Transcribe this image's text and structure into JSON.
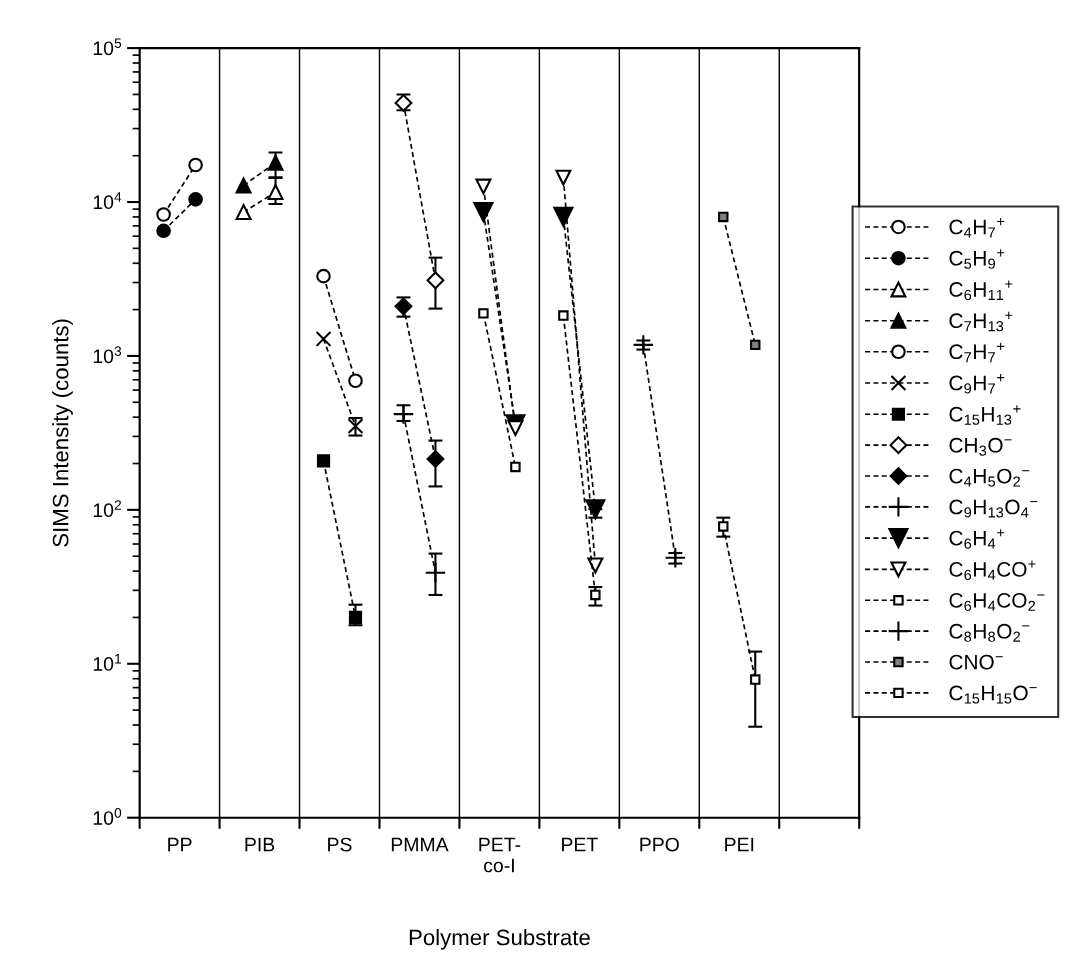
{
  "chart_data": {
    "type": "line",
    "xlabel": "Polymer Substrate",
    "ylabel": "SIMS Intensity (counts)",
    "log": "y",
    "grid": "x",
    "legend": "right",
    "line_style": "dashed",
    "categories": [
      null,
      null,
      "PP",
      null,
      null,
      null,
      null,
      "PIB",
      null,
      null,
      null,
      null,
      "PS",
      null,
      null,
      null,
      null,
      "PMMA",
      null,
      null,
      null,
      null,
      "PET-\nco-I",
      null,
      null,
      null,
      null,
      "PET",
      null,
      null,
      null,
      null,
      "PPO",
      null,
      null,
      null,
      null,
      "PEI",
      null,
      null,
      null,
      null,
      null,
      null,
      null
    ],
    "ylim": [
      1,
      100000
    ],
    "yticks": [
      {
        "value": 1,
        "label": "10$^{0}$"
      },
      {
        "value": 10,
        "label": "10$^{1}$"
      },
      {
        "value": 100,
        "label": "10$^{2}$"
      },
      {
        "value": 1000,
        "label": "10$^{3}$"
      },
      {
        "value": 10000,
        "label": "10$^{4}$"
      },
      {
        "value": 100000,
        "label": "10$^{5}$"
      }
    ],
    "series": [
      {
        "name": "C$_{4}$H$_{7}$$^{+}$",
        "color": "#000000",
        "marker": "circle-open",
        "values": [
          null,
          8300,
          null,
          17400,
          null,
          null,
          null,
          null,
          null,
          null,
          null,
          null,
          null,
          null,
          null,
          null,
          null,
          null,
          null,
          null,
          null,
          null,
          null,
          null,
          null,
          null,
          null,
          null,
          null,
          null,
          null,
          null,
          null,
          null,
          null,
          null,
          null,
          null,
          null,
          null,
          null,
          null,
          null,
          null,
          null
        ]
      },
      {
        "name": "C$_{5}$H$_{9}$$^{+}$",
        "color": "#000000",
        "marker": "circle",
        "values": [
          null,
          6500,
          null,
          10400,
          null,
          null,
          null,
          null,
          null,
          null,
          null,
          null,
          null,
          null,
          null,
          null,
          null,
          null,
          null,
          null,
          null,
          null,
          null,
          null,
          null,
          null,
          null,
          null,
          null,
          null,
          null,
          null,
          null,
          null,
          null,
          null,
          null,
          null,
          null,
          null,
          null,
          null,
          null,
          null,
          null
        ]
      },
      {
        "name": "C$_{6}$H$_{11}$$^{+}$",
        "color": "#000000",
        "marker": "triangle-open",
        "values": [
          null,
          null,
          null,
          null,
          null,
          null,
          8600,
          null,
          11600,
          null,
          null,
          null,
          null,
          null,
          null,
          null,
          null,
          null,
          null,
          null,
          null,
          null,
          null,
          null,
          null,
          null,
          null,
          null,
          null,
          null,
          null,
          null,
          null,
          null,
          null,
          null,
          null,
          null,
          null,
          null,
          null,
          null,
          null,
          null,
          null
        ],
        "errors": [
          null,
          null,
          null,
          null,
          null,
          null,
          null,
          null,
          [
            9700,
            14400
          ],
          null,
          null,
          null,
          null,
          null,
          null,
          null,
          null,
          null,
          null,
          null,
          null,
          null,
          null,
          null,
          null,
          null,
          null,
          null,
          null,
          null,
          null,
          null,
          null,
          null,
          null,
          null,
          null,
          null,
          null,
          null,
          null,
          null,
          null,
          null,
          null
        ]
      },
      {
        "name": "C$_{7}$H$_{13}$$^{+}$",
        "color": "#000000",
        "marker": "triangle",
        "values": [
          null,
          null,
          null,
          null,
          null,
          null,
          12800,
          null,
          18000,
          null,
          null,
          null,
          null,
          null,
          null,
          null,
          null,
          null,
          null,
          null,
          null,
          null,
          null,
          null,
          null,
          null,
          null,
          null,
          null,
          null,
          null,
          null,
          null,
          null,
          null,
          null,
          null,
          null,
          null,
          null,
          null,
          null,
          null,
          null,
          null
        ],
        "errors": [
          null,
          null,
          null,
          null,
          null,
          null,
          null,
          null,
          [
            14400,
            21000
          ],
          null,
          null,
          null,
          null,
          null,
          null,
          null,
          null,
          null,
          null,
          null,
          null,
          null,
          null,
          null,
          null,
          null,
          null,
          null,
          null,
          null,
          null,
          null,
          null,
          null,
          null,
          null,
          null,
          null,
          null,
          null,
          null,
          null,
          null,
          null,
          null
        ]
      },
      {
        "name": "C$_{7}$H$_{7}$$^{+}$",
        "color": "#000000",
        "marker": "circle-open",
        "values": [
          null,
          null,
          null,
          null,
          null,
          null,
          null,
          null,
          null,
          null,
          null,
          3300,
          null,
          690,
          null,
          null,
          null,
          null,
          null,
          null,
          null,
          null,
          null,
          null,
          null,
          null,
          null,
          null,
          null,
          null,
          null,
          null,
          null,
          null,
          null,
          null,
          null,
          null,
          null,
          null,
          null,
          null,
          null,
          null,
          null
        ]
      },
      {
        "name": "C$_{9}$H$_{7}$$^{+}$",
        "color": "#000000",
        "marker": "x",
        "values": [
          null,
          null,
          null,
          null,
          null,
          null,
          null,
          null,
          null,
          null,
          null,
          1290,
          null,
          350,
          null,
          null,
          null,
          null,
          null,
          null,
          null,
          null,
          null,
          null,
          null,
          null,
          null,
          null,
          null,
          null,
          null,
          null,
          null,
          null,
          null,
          null,
          null,
          null,
          null,
          null,
          null,
          null,
          null,
          null,
          null
        ],
        "errors": [
          null,
          null,
          null,
          null,
          null,
          null,
          null,
          null,
          null,
          null,
          null,
          null,
          null,
          [
            304,
            395
          ],
          null,
          null,
          null,
          null,
          null,
          null,
          null,
          null,
          null,
          null,
          null,
          null,
          null,
          null,
          null,
          null,
          null,
          null,
          null,
          null,
          null,
          null,
          null,
          null,
          null,
          null,
          null,
          null,
          null,
          null,
          null
        ]
      },
      {
        "name": "C$_{15}$H$_{13}$$^{+}$",
        "color": "#000000",
        "marker": "square",
        "values": [
          null,
          null,
          null,
          null,
          null,
          null,
          null,
          null,
          null,
          null,
          null,
          208,
          null,
          20,
          null,
          null,
          null,
          null,
          null,
          null,
          null,
          null,
          null,
          null,
          null,
          null,
          null,
          null,
          null,
          null,
          null,
          null,
          null,
          null,
          null,
          null,
          null,
          null,
          null,
          null,
          null,
          null,
          null,
          null,
          null
        ],
        "errors": [
          null,
          null,
          null,
          null,
          null,
          null,
          null,
          null,
          null,
          null,
          null,
          null,
          null,
          [
            17.8,
            24.2
          ],
          null,
          null,
          null,
          null,
          null,
          null,
          null,
          null,
          null,
          null,
          null,
          null,
          null,
          null,
          null,
          null,
          null,
          null,
          null,
          null,
          null,
          null,
          null,
          null,
          null,
          null,
          null,
          null,
          null,
          null,
          null
        ]
      },
      {
        "name": "CH$_{3}$O$^{−}$",
        "color": "#000000",
        "marker": "diamond-open",
        "values": [
          null,
          null,
          null,
          null,
          null,
          null,
          null,
          null,
          null,
          null,
          null,
          null,
          null,
          null,
          null,
          null,
          44000,
          null,
          3100,
          null,
          null,
          null,
          null,
          null,
          null,
          null,
          null,
          null,
          null,
          null,
          null,
          null,
          null,
          null,
          null,
          null,
          null,
          null,
          null,
          null,
          null,
          null,
          null,
          null,
          null
        ],
        "errors": [
          null,
          null,
          null,
          null,
          null,
          null,
          null,
          null,
          null,
          null,
          null,
          null,
          null,
          null,
          null,
          null,
          [
            39500,
            50000
          ],
          null,
          [
            2030,
            4350
          ],
          null,
          null,
          null,
          null,
          null,
          null,
          null,
          null,
          null,
          null,
          null,
          null,
          null,
          null,
          null,
          null,
          null,
          null,
          null,
          null,
          null,
          null,
          null,
          null,
          null,
          null
        ]
      },
      {
        "name": "C$_{4}$H$_{5}$O$_{2}$$^{−}$",
        "color": "#000000",
        "marker": "diamond",
        "values": [
          null,
          null,
          null,
          null,
          null,
          null,
          null,
          null,
          null,
          null,
          null,
          null,
          null,
          null,
          null,
          null,
          2100,
          null,
          214,
          null,
          null,
          null,
          null,
          null,
          null,
          null,
          null,
          null,
          null,
          null,
          null,
          null,
          null,
          null,
          null,
          null,
          null,
          null,
          null,
          null,
          null,
          null,
          null,
          null,
          null
        ],
        "errors": [
          null,
          null,
          null,
          null,
          null,
          null,
          null,
          null,
          null,
          null,
          null,
          null,
          null,
          null,
          null,
          null,
          [
            1800,
            2400
          ],
          null,
          [
            142,
            282
          ],
          null,
          null,
          null,
          null,
          null,
          null,
          null,
          null,
          null,
          null,
          null,
          null,
          null,
          null,
          null,
          null,
          null,
          null,
          null,
          null,
          null,
          null,
          null,
          null,
          null,
          null
        ]
      },
      {
        "name": "C$_{9}$H$_{13}$O$_{4}$$^{−}$",
        "color": "#000000",
        "marker": "plus",
        "values": [
          null,
          null,
          null,
          null,
          null,
          null,
          null,
          null,
          null,
          null,
          null,
          null,
          null,
          null,
          null,
          null,
          419,
          null,
          39,
          null,
          null,
          null,
          null,
          null,
          null,
          null,
          null,
          null,
          null,
          null,
          null,
          null,
          null,
          null,
          null,
          null,
          null,
          null,
          null,
          null,
          null,
          null,
          null,
          null,
          null
        ],
        "errors": [
          null,
          null,
          null,
          null,
          null,
          null,
          null,
          null,
          null,
          null,
          null,
          null,
          null,
          null,
          null,
          null,
          [
            378,
            478
          ],
          null,
          [
            28,
            52
          ],
          null,
          null,
          null,
          null,
          null,
          null,
          null,
          null,
          null,
          null,
          null,
          null,
          null,
          null,
          null,
          null,
          null,
          null,
          null,
          null,
          null,
          null,
          null,
          null,
          null,
          null
        ]
      },
      {
        "name": "C$_{6}$H$_{4}$$^{+}$",
        "color": "#000000",
        "marker": "triangle-down",
        "values": [
          null,
          null,
          null,
          null,
          null,
          null,
          null,
          null,
          null,
          null,
          null,
          null,
          null,
          null,
          null,
          null,
          null,
          null,
          null,
          null,
          null,
          8600,
          null,
          360,
          null,
          null,
          null,
          null,
          null,
          null,
          null,
          null,
          null,
          null,
          null,
          null,
          null,
          null,
          null,
          null,
          null,
          null,
          null,
          null,
          null
        ]
      },
      {
        "color": "#000000",
        "marker": "triangle-down",
        "values": [
          null,
          null,
          null,
          null,
          null,
          null,
          null,
          null,
          null,
          null,
          null,
          null,
          null,
          null,
          null,
          null,
          null,
          null,
          null,
          null,
          null,
          null,
          null,
          null,
          null,
          null,
          8000,
          null,
          101,
          null,
          null,
          null,
          null,
          null,
          null,
          null,
          null,
          null,
          null,
          null,
          null,
          null,
          null,
          null,
          null
        ],
        "errors": [
          null,
          null,
          null,
          null,
          null,
          null,
          null,
          null,
          null,
          null,
          null,
          null,
          null,
          null,
          null,
          null,
          null,
          null,
          null,
          null,
          null,
          null,
          null,
          null,
          null,
          null,
          null,
          null,
          [
            89,
            101
          ],
          null,
          null,
          null,
          null,
          null,
          null,
          null,
          null,
          null,
          null,
          null,
          null,
          null,
          null,
          null,
          null
        ]
      },
      {
        "name": "C$_{6}$H$_{4}$CO$^{+}$",
        "color": "#000000",
        "marker": "triangle-down-open",
        "values": [
          null,
          null,
          null,
          null,
          null,
          null,
          null,
          null,
          null,
          null,
          null,
          null,
          null,
          null,
          null,
          null,
          null,
          null,
          null,
          null,
          null,
          12600,
          null,
          340,
          null,
          null,
          null,
          null,
          null,
          null,
          null,
          null,
          null,
          null,
          null,
          null,
          null,
          null,
          null,
          null,
          null,
          null,
          null,
          null,
          null
        ]
      },
      {
        "color": "#000000",
        "marker": "triangle-down-open",
        "values": [
          null,
          null,
          null,
          null,
          null,
          null,
          null,
          null,
          null,
          null,
          null,
          null,
          null,
          null,
          null,
          null,
          null,
          null,
          null,
          null,
          null,
          null,
          null,
          null,
          null,
          null,
          14400,
          null,
          43.5,
          null,
          null,
          null,
          null,
          null,
          null,
          null,
          null,
          null,
          null,
          null,
          null,
          null,
          null,
          null,
          null
        ]
      },
      {
        "name": "C$_{6}$H$_{4}$CO$_{2}$$^{−}$",
        "color": "#000000",
        "marker": "square-open",
        "values": [
          null,
          null,
          null,
          null,
          null,
          null,
          null,
          null,
          null,
          null,
          null,
          null,
          null,
          null,
          null,
          null,
          null,
          null,
          null,
          null,
          null,
          1890,
          null,
          190,
          null,
          null,
          null,
          null,
          null,
          null,
          null,
          null,
          null,
          null,
          null,
          null,
          null,
          null,
          null,
          null,
          null,
          null,
          null,
          null,
          null
        ]
      },
      {
        "color": "#000000",
        "marker": "square-open",
        "values": [
          null,
          null,
          null,
          null,
          null,
          null,
          null,
          null,
          null,
          null,
          null,
          null,
          null,
          null,
          null,
          null,
          null,
          null,
          null,
          null,
          null,
          null,
          null,
          null,
          null,
          null,
          1830,
          null,
          28,
          null,
          null,
          null,
          null,
          null,
          null,
          null,
          null,
          null,
          null,
          null,
          null,
          null,
          null,
          null,
          null
        ],
        "errors": [
          null,
          null,
          null,
          null,
          null,
          null,
          null,
          null,
          null,
          null,
          null,
          null,
          null,
          null,
          null,
          null,
          null,
          null,
          null,
          null,
          null,
          null,
          null,
          null,
          null,
          null,
          null,
          null,
          [
            23.9,
            31.5
          ],
          null,
          null,
          null,
          null,
          null,
          null,
          null,
          null,
          null,
          null,
          null,
          null,
          null,
          null,
          null,
          null
        ]
      },
      {
        "name": "C$_{8}$H$_{8}$O$_{2}$$^{−}$",
        "color": "#000000",
        "marker": "plus",
        "values": [
          null,
          null,
          null,
          null,
          null,
          null,
          null,
          null,
          null,
          null,
          null,
          null,
          null,
          null,
          null,
          null,
          null,
          null,
          null,
          null,
          null,
          null,
          null,
          null,
          null,
          null,
          null,
          null,
          null,
          null,
          null,
          1180,
          null,
          48.9,
          null,
          null,
          null,
          null,
          null,
          null,
          null,
          null,
          null,
          null,
          null
        ],
        "errors": [
          null,
          null,
          null,
          null,
          null,
          null,
          null,
          null,
          null,
          null,
          null,
          null,
          null,
          null,
          null,
          null,
          null,
          null,
          null,
          null,
          null,
          null,
          null,
          null,
          null,
          null,
          null,
          null,
          null,
          null,
          null,
          [
            1100,
            1260
          ],
          null,
          [
            44.8,
            52.4
          ],
          null,
          null,
          null,
          null,
          null,
          null,
          null,
          null,
          null,
          null,
          null
        ]
      },
      {
        "name": "CNO$^{−}$",
        "color": "#000000",
        "marker": "square-gray",
        "values": [
          null,
          null,
          null,
          null,
          null,
          null,
          null,
          null,
          null,
          null,
          null,
          null,
          null,
          null,
          null,
          null,
          null,
          null,
          null,
          null,
          null,
          null,
          null,
          null,
          null,
          null,
          null,
          null,
          null,
          null,
          null,
          null,
          null,
          null,
          null,
          null,
          8000,
          null,
          1180,
          null,
          null,
          null,
          null,
          null,
          null
        ]
      },
      {
        "name": "C$_{15}$H$_{15}$O$^{−}$",
        "color": "#000000",
        "marker": "square-open",
        "values": [
          null,
          null,
          null,
          null,
          null,
          null,
          null,
          null,
          null,
          null,
          null,
          null,
          null,
          null,
          null,
          null,
          null,
          null,
          null,
          null,
          null,
          null,
          null,
          null,
          null,
          null,
          null,
          null,
          null,
          null,
          null,
          null,
          null,
          null,
          null,
          null,
          78,
          null,
          7.9,
          null,
          null,
          null,
          null,
          null,
          null
        ],
        "errors": [
          null,
          null,
          null,
          null,
          null,
          null,
          null,
          null,
          null,
          null,
          null,
          null,
          null,
          null,
          null,
          null,
          null,
          null,
          null,
          null,
          null,
          null,
          null,
          null,
          null,
          null,
          null,
          null,
          null,
          null,
          null,
          null,
          null,
          null,
          null,
          null,
          [
            67,
            89
          ],
          null,
          [
            3.9,
            12
          ],
          null,
          null,
          null,
          null,
          null,
          null
        ]
      }
    ]
  }
}
